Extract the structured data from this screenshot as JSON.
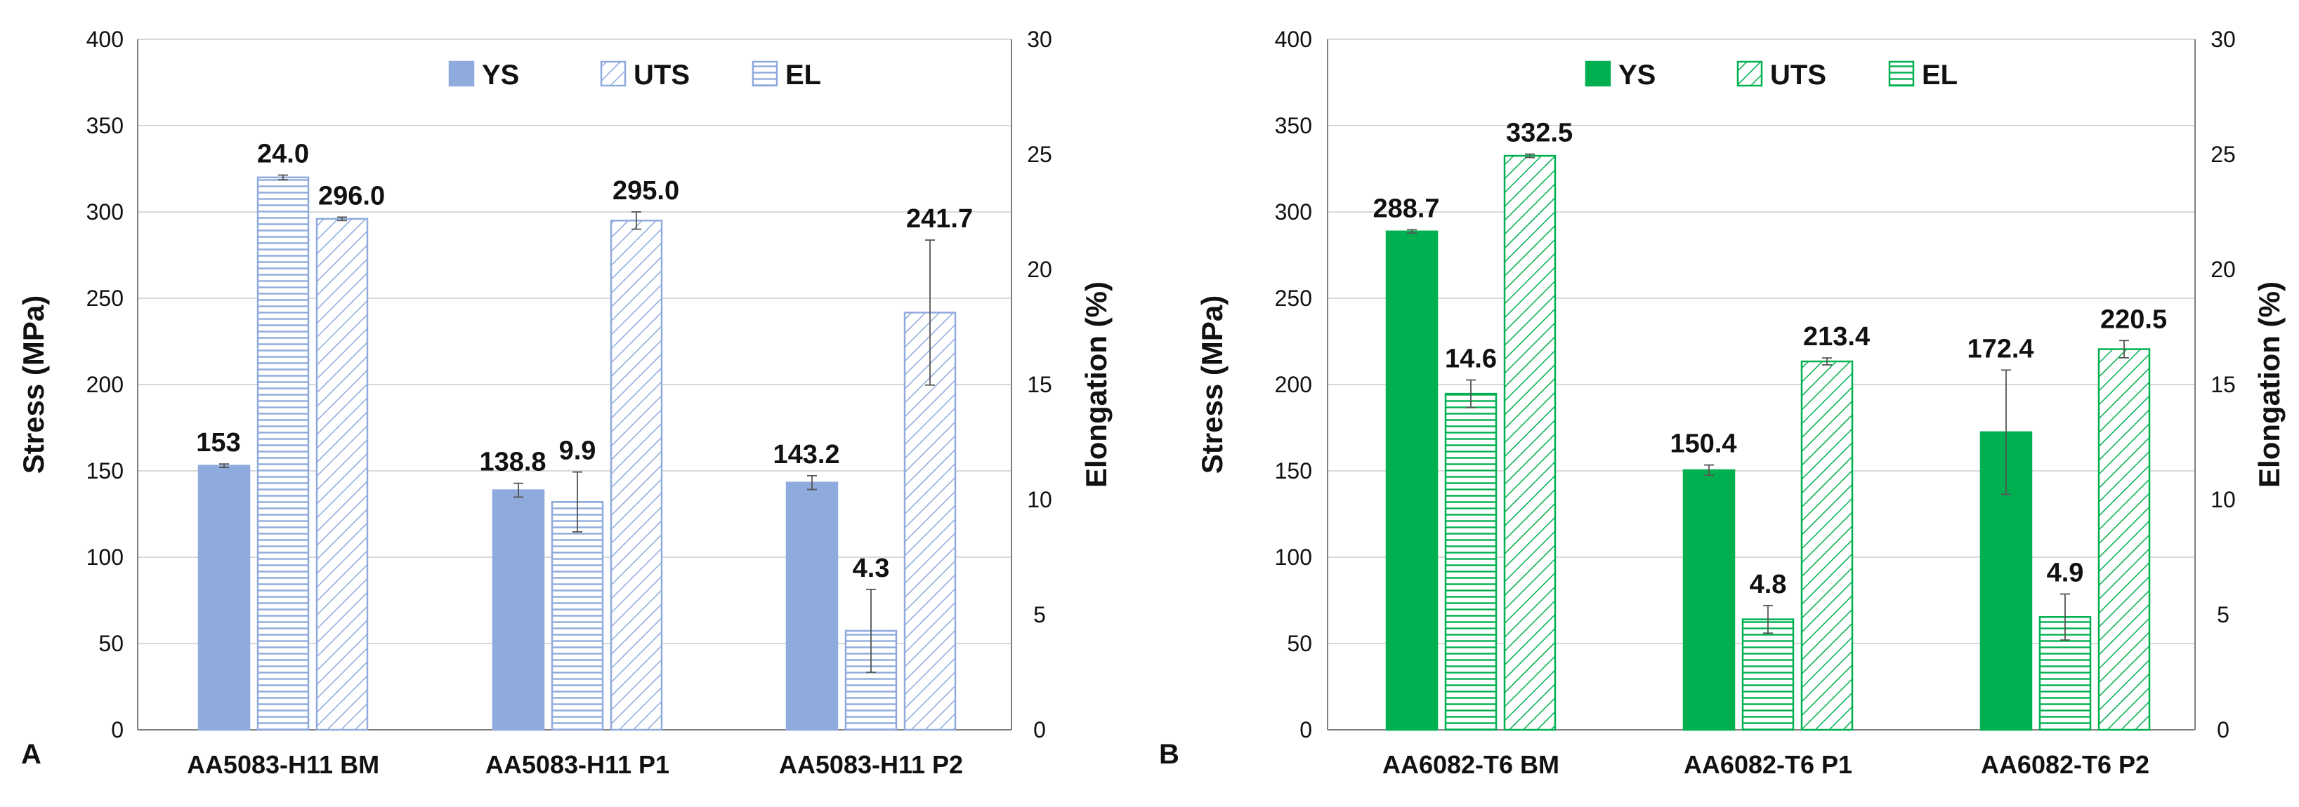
{
  "chart_data": [
    {
      "type": "bar",
      "panel_label": "A",
      "categories": [
        "AA5083-H11 BM",
        "AA5083-H11 P1",
        "AA5083-H11 P2"
      ],
      "series": [
        {
          "name": "YS",
          "axis": "left",
          "fill": "solid",
          "values": [
            153,
            138.8,
            143.2
          ],
          "labels": [
            "153",
            "138.8",
            "143.2"
          ],
          "errors": [
            1,
            4,
            4
          ]
        },
        {
          "name": "EL",
          "axis": "right",
          "fill": "horizontal-lines",
          "values": [
            24.0,
            9.9,
            4.3
          ],
          "labels": [
            "24.0",
            "9.9",
            "4.3"
          ],
          "errors": [
            0.1,
            1.3,
            1.8
          ]
        },
        {
          "name": "UTS",
          "axis": "left",
          "fill": "diagonal-lines",
          "values": [
            296.0,
            295.0,
            241.7
          ],
          "labels": [
            "296.0",
            "295.0",
            "241.7"
          ],
          "errors": [
            1,
            5,
            42
          ]
        }
      ],
      "legend_order": [
        "YS",
        "UTS",
        "EL"
      ],
      "color": "#8faadc",
      "ylabel": "Stress (MPa)",
      "y2label": "Elongation (%)",
      "ylim": [
        0,
        400
      ],
      "y2lim": [
        0,
        30
      ],
      "yticks": [
        0,
        50,
        100,
        150,
        200,
        250,
        300,
        350,
        400
      ],
      "y2ticks": [
        0,
        5,
        10,
        15,
        20,
        25,
        30
      ],
      "grid": true,
      "legend_position": "top-center"
    },
    {
      "type": "bar",
      "panel_label": "B",
      "categories": [
        "AA6082-T6 BM",
        "AA6082-T6 P1",
        "AA6082-T6 P2"
      ],
      "series": [
        {
          "name": "YS",
          "axis": "left",
          "fill": "solid",
          "values": [
            288.7,
            150.4,
            172.4
          ],
          "labels": [
            "288.7",
            "150.4",
            "172.4"
          ],
          "errors": [
            1,
            3,
            36
          ]
        },
        {
          "name": "EL",
          "axis": "right",
          "fill": "horizontal-lines",
          "values": [
            14.6,
            4.8,
            4.9
          ],
          "labels": [
            "14.6",
            "4.8",
            "4.9"
          ],
          "errors": [
            0.6,
            0.6,
            1.0
          ]
        },
        {
          "name": "UTS",
          "axis": "left",
          "fill": "diagonal-lines",
          "values": [
            332.5,
            213.4,
            220.5
          ],
          "labels": [
            "332.5",
            "213.4",
            "220.5"
          ],
          "errors": [
            1,
            2,
            5
          ]
        }
      ],
      "legend_order": [
        "YS",
        "UTS",
        "EL"
      ],
      "color": "#00b050",
      "ylabel": "Stress (MPa)",
      "y2label": "Elongation (%)",
      "ylim": [
        0,
        400
      ],
      "y2lim": [
        0,
        30
      ],
      "yticks": [
        0,
        50,
        100,
        150,
        200,
        250,
        300,
        350,
        400
      ],
      "y2ticks": [
        0,
        5,
        10,
        15,
        20,
        25,
        30
      ],
      "grid": true,
      "legend_position": "top-center"
    }
  ]
}
